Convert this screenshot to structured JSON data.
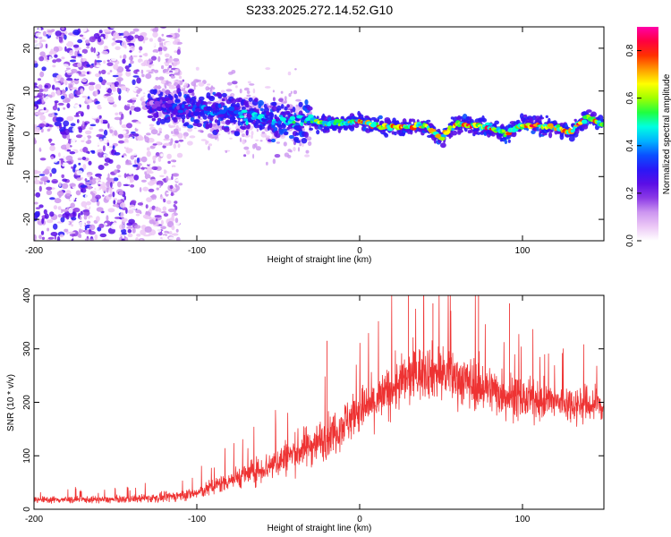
{
  "title": "S233.2025.272.14.52.G10",
  "chart_data": [
    {
      "type": "heatmap",
      "name": "spectrogram",
      "xlabel": "Height of straight line (km)",
      "ylabel": "Frequency (Hz)",
      "xlim": [
        -200,
        150
      ],
      "ylim": [
        -25,
        25
      ],
      "xticks": [
        -200,
        -100,
        0,
        100
      ],
      "yticks": [
        -20,
        -10,
        0,
        10,
        20
      ],
      "colorbar": {
        "label": "Normalized spectral amplitude",
        "range": [
          0.0,
          0.9
        ],
        "ticks": [
          "0.0",
          "0.2",
          "0.4",
          "0.6",
          "0.8"
        ],
        "colors": [
          "#ffffff",
          "#ecc8f6",
          "#cc96f0",
          "#8c3ae6",
          "#5a0ee6",
          "#2a18f6",
          "#0a50ff",
          "#00b4ff",
          "#00ffe0",
          "#20ff40",
          "#a0ff00",
          "#ffff00",
          "#ff9c00",
          "#ff3000",
          "#ff0040",
          "#ff00a8"
        ]
      },
      "ridge": {
        "x": [
          -130,
          -120,
          -110,
          -100,
          -90,
          -80,
          -70,
          -60,
          -50,
          -40,
          -30,
          -20,
          -10,
          0,
          10,
          20,
          30,
          40,
          50,
          60,
          70,
          80,
          90,
          100,
          110,
          120,
          130,
          140,
          150
        ],
        "freq": [
          7,
          7,
          6,
          6,
          5,
          5,
          4,
          4,
          3,
          3,
          3,
          2.5,
          2.5,
          3,
          2,
          1.5,
          1.5,
          2,
          -1,
          2.5,
          2,
          1.5,
          0,
          2,
          2,
          1.5,
          0.5,
          4,
          2
        ],
        "amplitude": [
          0.2,
          0.3,
          0.35,
          0.4,
          0.4,
          0.45,
          0.45,
          0.45,
          0.45,
          0.5,
          0.55,
          0.65,
          0.7,
          0.75,
          0.7,
          0.8,
          0.75,
          0.7,
          0.7,
          0.75,
          0.8,
          0.75,
          0.7,
          0.75,
          0.8,
          0.75,
          0.8,
          0.8,
          0.75
        ]
      },
      "noise_region": {
        "x": [
          -200,
          -120
        ],
        "amplitude": 0.25
      }
    },
    {
      "type": "line",
      "name": "snr",
      "xlabel": "Height of straight line (km)",
      "ylabel": "SNR (10 * v/v)",
      "xlim": [
        -200,
        150
      ],
      "ylim": [
        0,
        400
      ],
      "xticks": [
        -200,
        -100,
        0,
        100
      ],
      "yticks": [
        0,
        100,
        200,
        300,
        400
      ],
      "color": "#ee3333",
      "envelope": {
        "x": [
          -200,
          -150,
          -120,
          -100,
          -90,
          -80,
          -70,
          -60,
          -50,
          -40,
          -30,
          -20,
          -10,
          0,
          10,
          20,
          30,
          40,
          50,
          60,
          70,
          80,
          90,
          100,
          110,
          120,
          130,
          140,
          150
        ],
        "median": [
          18,
          18,
          22,
          30,
          42,
          55,
          65,
          75,
          90,
          105,
          120,
          135,
          160,
          185,
          200,
          225,
          245,
          260,
          255,
          245,
          235,
          225,
          215,
          205,
          205,
          200,
          198,
          195,
          195
        ],
        "spread": [
          10,
          10,
          14,
          18,
          25,
          30,
          35,
          40,
          50,
          55,
          60,
          60,
          65,
          70,
          70,
          75,
          80,
          80,
          80,
          75,
          75,
          70,
          70,
          60,
          55,
          55,
          55,
          55,
          55
        ]
      },
      "spikes": [
        {
          "x": -20,
          "y": 315
        },
        {
          "x": 30,
          "y": 405
        },
        {
          "x": 73,
          "y": 405
        },
        {
          "x": 92,
          "y": 385
        },
        {
          "x": 45,
          "y": 385
        }
      ]
    }
  ]
}
